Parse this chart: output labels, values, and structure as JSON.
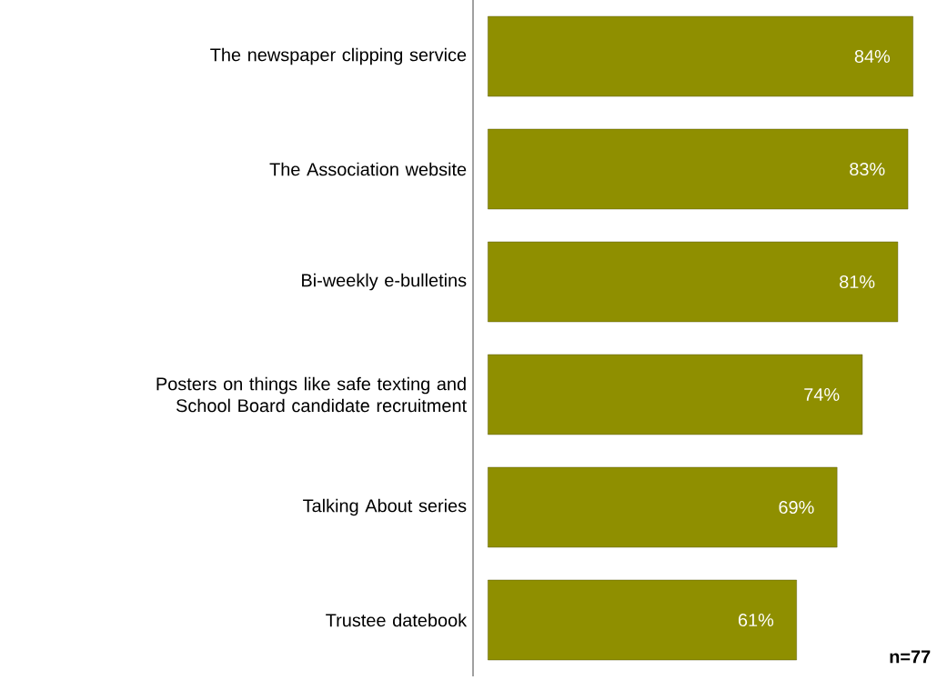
{
  "chart_data": {
    "type": "bar",
    "orientation": "horizontal",
    "categories": [
      "The newspaper clipping service",
      "The Association website",
      "Bi-weekly e-bulletins",
      "Posters on things like safe texting and School Board candidate recruitment",
      "Talking About series",
      "Trustee datebook"
    ],
    "values": [
      84,
      83,
      81,
      74,
      69,
      61
    ],
    "value_labels": [
      "84%",
      "83%",
      "81%",
      "74%",
      "69%",
      "61%"
    ],
    "color": "#8f8f00",
    "annotations": [
      "n=77"
    ]
  }
}
